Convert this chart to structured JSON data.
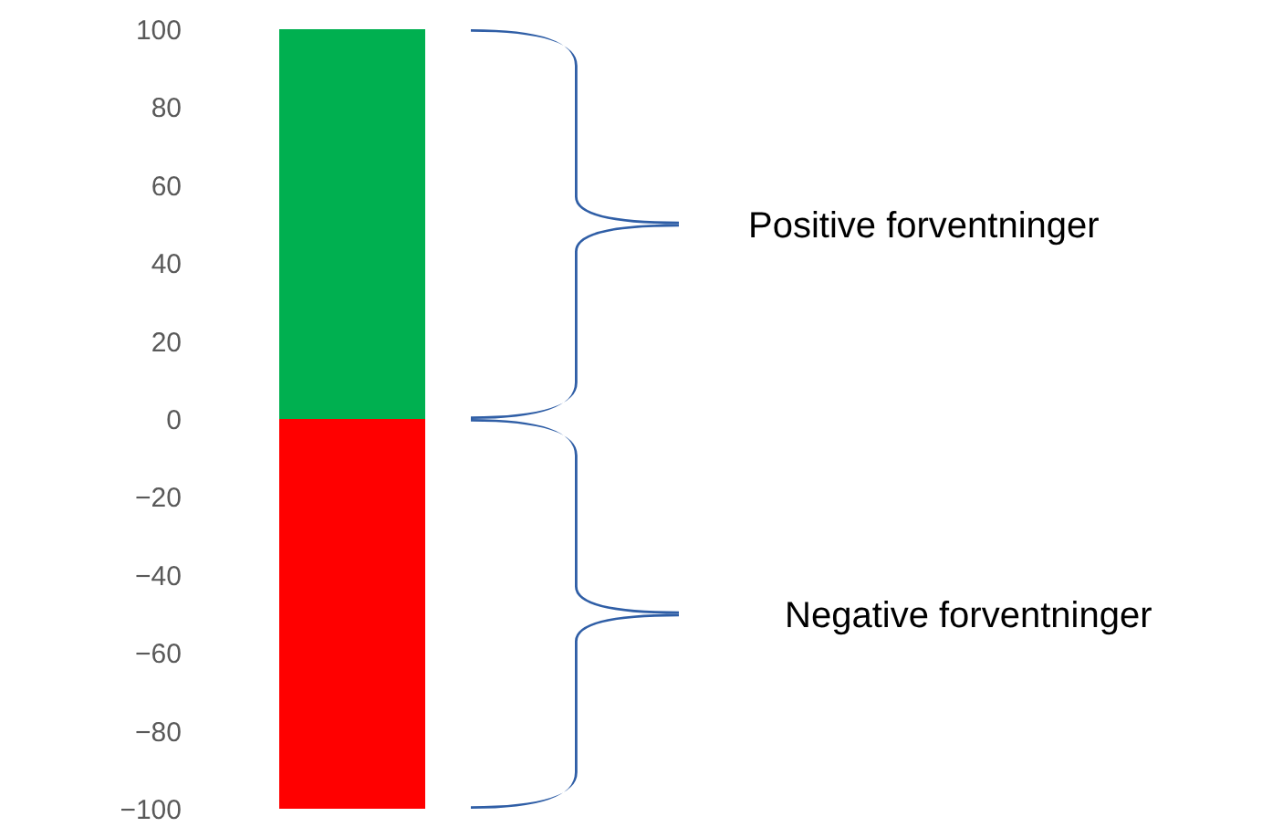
{
  "chart_data": {
    "type": "bar",
    "categories": [
      null
    ],
    "stacked": true,
    "series": [
      {
        "color": "#00b050",
        "values": [
          100
        ]
      },
      {
        "color": "#ff0000",
        "values": [
          -100
        ]
      }
    ],
    "ylim": [
      -100,
      100
    ],
    "yticks": [
      -100,
      -80,
      -60,
      -40,
      -20,
      0,
      20,
      40,
      60,
      80,
      100
    ],
    "grid": false,
    "tick_labels": "y",
    "annotations": [
      "Positive forventninger",
      "Negative forventninger"
    ]
  }
}
